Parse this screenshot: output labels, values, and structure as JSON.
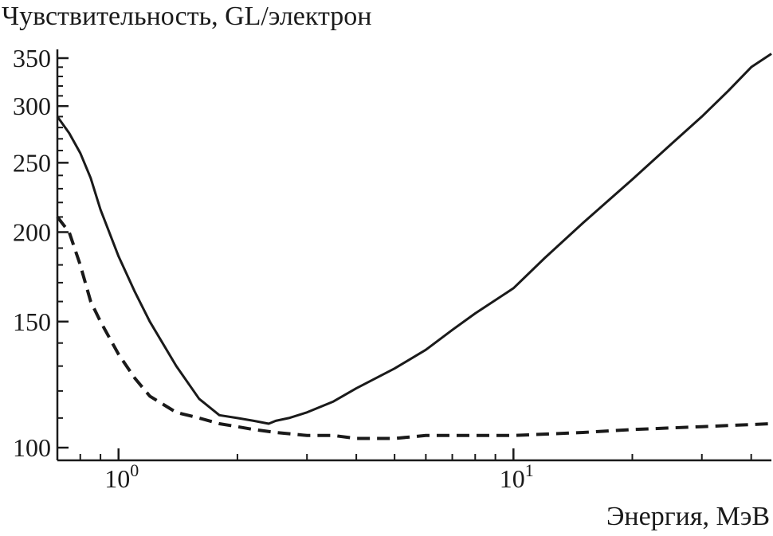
{
  "chart_data": {
    "type": "line",
    "ylabel": "Чувствительность, GL/электрон",
    "xlabel": "Энергия, МэВ",
    "xscale": "log",
    "yscale": "log",
    "xlim": [
      0.7,
      45
    ],
    "ylim": [
      96,
      360
    ],
    "x_ticks": [
      {
        "value": 1,
        "base": "10",
        "exp": "0"
      },
      {
        "value": 10,
        "base": "10",
        "exp": "1"
      }
    ],
    "y_ticks": [
      100,
      150,
      200,
      250,
      300,
      350
    ],
    "grid": false,
    "series": [
      {
        "style": "solid",
        "x": [
          0.7,
          0.75,
          0.8,
          0.85,
          0.9,
          1.0,
          1.1,
          1.2,
          1.4,
          1.6,
          1.8,
          2.0,
          2.2,
          2.4,
          2.5,
          2.7,
          3.0,
          3.5,
          4.0,
          5.0,
          6.0,
          7.0,
          8.0,
          10.0,
          12.0,
          15.0,
          20.0,
          25.0,
          30.0,
          35.0,
          40.0,
          45.0
        ],
        "y": [
          290,
          275,
          258,
          238,
          215,
          185,
          165,
          150,
          130,
          117,
          111,
          110,
          109,
          108,
          109,
          110,
          112,
          116,
          121,
          129,
          137,
          146,
          154,
          167,
          184,
          206,
          237,
          265,
          290,
          315,
          340,
          355
        ]
      },
      {
        "style": "dashed",
        "x": [
          0.7,
          0.75,
          0.8,
          0.85,
          0.9,
          1.0,
          1.1,
          1.2,
          1.4,
          1.6,
          1.8,
          2.0,
          2.2,
          2.5,
          3.0,
          3.5,
          4.0,
          5.0,
          6.0,
          7.0,
          8.0,
          10.0,
          15.0,
          20.0,
          30.0,
          45.0
        ],
        "y": [
          210,
          200,
          180,
          160,
          150,
          135,
          125,
          118,
          112,
          110,
          108,
          107,
          106,
          105,
          104,
          104,
          103,
          103,
          104,
          104,
          104,
          104,
          105,
          106,
          107,
          108
        ]
      }
    ]
  }
}
